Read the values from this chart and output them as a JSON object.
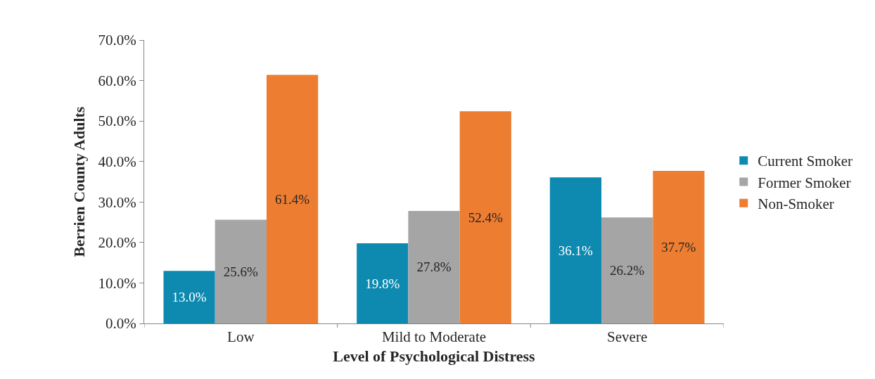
{
  "chart_data": {
    "type": "bar",
    "xlabel": "Level of Psychological Distress",
    "ylabel": "Berrien County Adults",
    "categories": [
      "Low",
      "Mild to Moderate",
      "Severe"
    ],
    "series": [
      {
        "name": "Current Smoker",
        "color": "#0e8ab0",
        "values": [
          13.0,
          19.8,
          36.1
        ],
        "value_labels": [
          "13.0%",
          "19.8%",
          "36.1%"
        ]
      },
      {
        "name": "Former Smoker",
        "color": "#a5a5a5",
        "values": [
          25.6,
          27.8,
          26.2
        ],
        "value_labels": [
          "25.6%",
          "27.8%",
          "26.2%"
        ]
      },
      {
        "name": "Non-Smoker",
        "color": "#ed7d31",
        "values": [
          61.4,
          52.4,
          37.7
        ],
        "value_labels": [
          "61.4%",
          "52.4%",
          "37.7%"
        ]
      }
    ],
    "ylim": [
      0,
      70
    ],
    "yticks": [
      {
        "value": 0,
        "label": "0.0%"
      },
      {
        "value": 10,
        "label": "10.0%"
      },
      {
        "value": 20,
        "label": "20.0%"
      },
      {
        "value": 30,
        "label": "30.0%"
      },
      {
        "value": 40,
        "label": "40.0%"
      },
      {
        "value": 50,
        "label": "50.0%"
      },
      {
        "value": 60,
        "label": "60.0%"
      },
      {
        "value": 70,
        "label": "70.0%"
      }
    ],
    "grid": false,
    "legend": "right"
  }
}
